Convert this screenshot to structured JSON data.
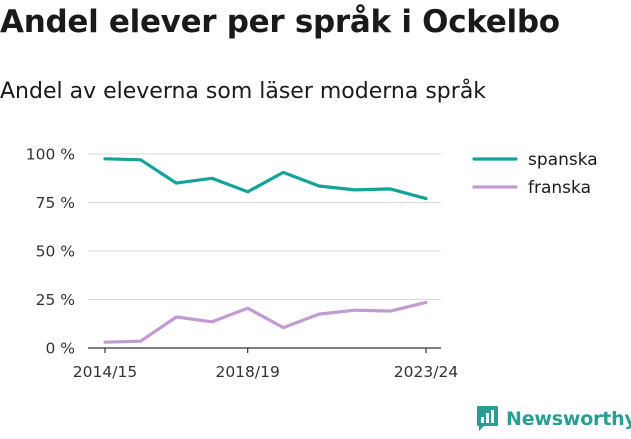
{
  "title": "Andel elever per språk i Ockelbo",
  "subtitle": "Andel av eleverna som läser moderna språk",
  "brand": {
    "name": "Newsworthy",
    "icon": "newsworthy-logo-icon",
    "color": "#2a9d95"
  },
  "chart_data": {
    "type": "line",
    "x": [
      "2014/15",
      "2015/16",
      "2016/17",
      "2017/18",
      "2018/19",
      "2019/20",
      "2020/21",
      "2021/22",
      "2022/23",
      "2023/24"
    ],
    "x_tick_labels": [
      "2014/15",
      "2018/19",
      "2023/24"
    ],
    "y_ticks": [
      0,
      25,
      50,
      75,
      100
    ],
    "y_tick_labels": [
      "0 %",
      "25 %",
      "50 %",
      "75 %",
      "100 %"
    ],
    "ylim": [
      0,
      100
    ],
    "grid": true,
    "legend_position": "right",
    "series": [
      {
        "name": "spanska",
        "color": "#14a39a",
        "values": [
          97.5,
          97,
          85,
          87.5,
          80.5,
          90.5,
          83.5,
          81.5,
          82,
          77
        ]
      },
      {
        "name": "franska",
        "color": "#c39bd3",
        "values": [
          3,
          3.5,
          16,
          13.5,
          20.5,
          10.5,
          17.5,
          19.5,
          19,
          23.5
        ]
      }
    ]
  }
}
